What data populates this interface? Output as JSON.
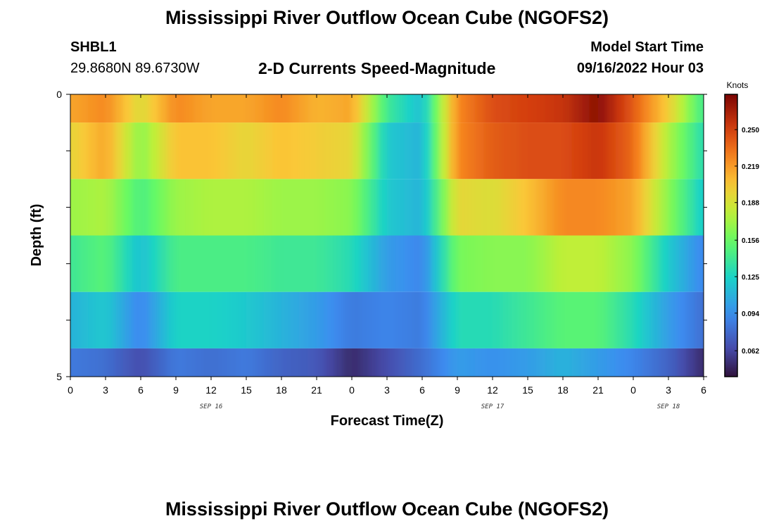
{
  "header": {
    "title": "Mississippi River Outflow Ocean Cube (NGOFS2)",
    "station": "SHBL1",
    "coords": "29.8680N  89.6730W",
    "subtitle": "2-D Currents Speed-Magnitude",
    "start_label": "Model Start Time",
    "start_value": "09/16/2022 Hour 03"
  },
  "footer": {
    "title": "Mississippi River Outflow Ocean Cube (NGOFS2)"
  },
  "chart_data": {
    "type": "heatmap",
    "title": "2-D Currents Speed-Magnitude",
    "xlabel": "Forecast Time(Z)",
    "ylabel": "Depth (ft)",
    "colorbar_label": "Knots",
    "colorbar_ticks": [
      0.062,
      0.094,
      0.125,
      0.156,
      0.188,
      0.219,
      0.25
    ],
    "colorbar_range": [
      0.04,
      0.28
    ],
    "xlim": [
      0,
      54
    ],
    "ylim": [
      0,
      5
    ],
    "y_ticks": [
      0,
      5
    ],
    "x_ticks": [
      {
        "hour": 0,
        "label": "0"
      },
      {
        "hour": 3,
        "label": "3"
      },
      {
        "hour": 6,
        "label": "6"
      },
      {
        "hour": 9,
        "label": "9"
      },
      {
        "hour": 12,
        "label": "12"
      },
      {
        "hour": 15,
        "label": "15"
      },
      {
        "hour": 18,
        "label": "18"
      },
      {
        "hour": 21,
        "label": "21"
      },
      {
        "hour": 24,
        "label": "0"
      },
      {
        "hour": 27,
        "label": "3"
      },
      {
        "hour": 30,
        "label": "6"
      },
      {
        "hour": 33,
        "label": "9"
      },
      {
        "hour": 36,
        "label": "12"
      },
      {
        "hour": 39,
        "label": "15"
      },
      {
        "hour": 42,
        "label": "18"
      },
      {
        "hour": 45,
        "label": "21"
      },
      {
        "hour": 48,
        "label": "0"
      },
      {
        "hour": 51,
        "label": "3"
      },
      {
        "hour": 54,
        "label": "6"
      }
    ],
    "date_labels": [
      {
        "hour": 12,
        "label": "SEP 16"
      },
      {
        "hour": 36,
        "label": "SEP 17"
      },
      {
        "hour": 51,
        "label": "SEP 18"
      }
    ],
    "depth_layers": [
      {
        "top": 0,
        "bottom": 0.5
      },
      {
        "top": 0.5,
        "bottom": 1.5
      },
      {
        "top": 1.5,
        "bottom": 2.5
      },
      {
        "top": 2.5,
        "bottom": 3.5
      },
      {
        "top": 3.5,
        "bottom": 4.5
      },
      {
        "top": 4.5,
        "bottom": 5
      }
    ],
    "hours": [
      0,
      3,
      6,
      9,
      12,
      15,
      18,
      21,
      24,
      27,
      30,
      33,
      36,
      39,
      42,
      45,
      48,
      51,
      54
    ],
    "values": [
      [
        0.215,
        0.225,
        0.19,
        0.225,
        0.215,
        0.215,
        0.225,
        0.21,
        0.215,
        0.14,
        0.115,
        0.225,
        0.245,
        0.25,
        0.255,
        0.275,
        0.24,
        0.2,
        0.14
      ],
      [
        0.195,
        0.215,
        0.165,
        0.205,
        0.205,
        0.195,
        0.205,
        0.2,
        0.195,
        0.12,
        0.11,
        0.225,
        0.24,
        0.245,
        0.245,
        0.255,
        0.235,
        0.175,
        0.13
      ],
      [
        0.17,
        0.175,
        0.145,
        0.17,
        0.175,
        0.175,
        0.17,
        0.17,
        0.165,
        0.12,
        0.11,
        0.195,
        0.19,
        0.205,
        0.225,
        0.225,
        0.215,
        0.165,
        0.12
      ],
      [
        0.14,
        0.15,
        0.115,
        0.145,
        0.145,
        0.145,
        0.14,
        0.14,
        0.13,
        0.1,
        0.09,
        0.16,
        0.165,
        0.165,
        0.18,
        0.18,
        0.165,
        0.12,
        0.09
      ],
      [
        0.11,
        0.12,
        0.09,
        0.125,
        0.125,
        0.12,
        0.11,
        0.1,
        0.085,
        0.09,
        0.085,
        0.13,
        0.13,
        0.14,
        0.15,
        0.15,
        0.13,
        0.1,
        0.08
      ],
      [
        0.085,
        0.08,
        0.065,
        0.085,
        0.08,
        0.085,
        0.075,
        0.07,
        0.05,
        0.065,
        0.08,
        0.1,
        0.095,
        0.1,
        0.11,
        0.1,
        0.09,
        0.075,
        0.05
      ]
    ]
  }
}
